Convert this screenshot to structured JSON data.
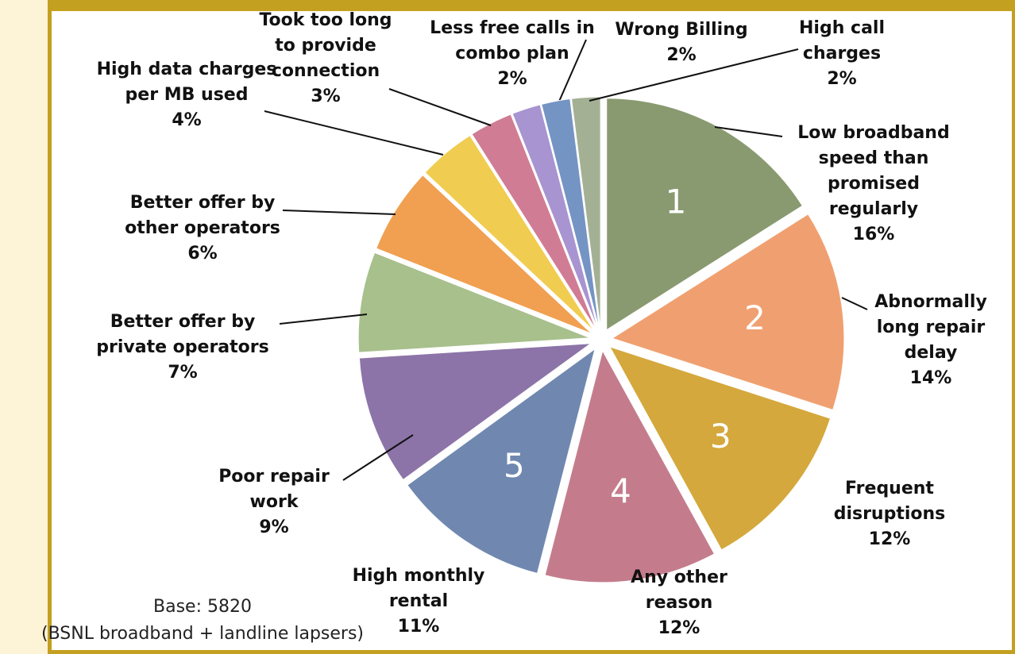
{
  "chart_data": {
    "type": "pie",
    "categories": [
      "Low broadband speed than promised regularly",
      "Abnormally long repair delay",
      "Frequent disruptions",
      "Any other reason",
      "High monthly rental",
      "Poor repair work",
      "Better offer by private operators",
      "Better offer by other operators",
      "High data charges per MB used",
      "Took too long to provide connection",
      "Less free calls in combo plan",
      "Wrong Billing",
      "High call charges"
    ],
    "values": [
      16,
      14,
      12,
      12,
      11,
      9,
      7,
      6,
      4,
      3,
      2,
      2,
      2
    ],
    "value_labels": [
      "16%",
      "14%",
      "12%",
      "12%",
      "11%",
      "9%",
      "7%",
      "6%",
      "4%",
      "3%",
      "2%",
      "2%",
      "2%"
    ],
    "colors": [
      "#8a9a70",
      "#f0a070",
      "#d4a83c",
      "#c47c8c",
      "#7088b0",
      "#8c74a8",
      "#a8c08c",
      "#f0a050",
      "#f0cc50",
      "#d07c94",
      "#a894d0",
      "#7494c4",
      "#a4b094"
    ],
    "ranks": [
      1,
      2,
      3,
      4,
      5
    ],
    "notes": [
      "Base: 5820",
      "(BSNL broadband + landline lapsers)"
    ]
  }
}
